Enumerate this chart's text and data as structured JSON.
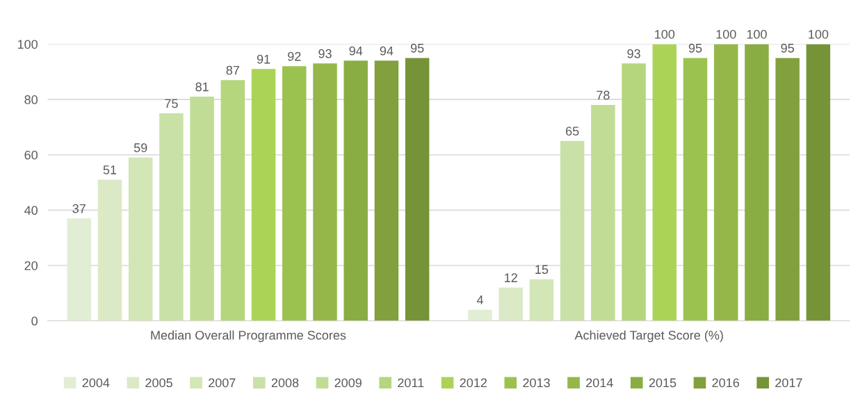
{
  "chart_data": {
    "type": "bar",
    "categories": [
      "Median Overall Programme Scores",
      "Achieved Target Score (%)"
    ],
    "series": [
      {
        "name": "2004",
        "color": "#e2eed4",
        "values": [
          37,
          4
        ]
      },
      {
        "name": "2005",
        "color": "#dbe9c6",
        "values": [
          51,
          12
        ]
      },
      {
        "name": "2007",
        "color": "#d3e6b6",
        "values": [
          59,
          15
        ]
      },
      {
        "name": "2008",
        "color": "#c9e1a6",
        "values": [
          75,
          65
        ]
      },
      {
        "name": "2009",
        "color": "#c1dd95",
        "values": [
          81,
          78
        ]
      },
      {
        "name": "2011",
        "color": "#b5d67c",
        "values": [
          87,
          93
        ]
      },
      {
        "name": "2012",
        "color": "#abd457",
        "values": [
          91,
          100
        ]
      },
      {
        "name": "2013",
        "color": "#9bc24f",
        "values": [
          92,
          95
        ]
      },
      {
        "name": "2014",
        "color": "#95b74a",
        "values": [
          93,
          100
        ]
      },
      {
        "name": "2015",
        "color": "#89ad43",
        "values": [
          94,
          100
        ]
      },
      {
        "name": "2016",
        "color": "#82a03d",
        "values": [
          94,
          95
        ]
      },
      {
        "name": "2017",
        "color": "#769437",
        "values": [
          95,
          100
        ]
      }
    ],
    "ylim": [
      0,
      100
    ],
    "yticks": [
      0,
      20,
      40,
      60,
      80,
      100
    ],
    "grid": "y",
    "legend": "bottom",
    "data_labels": true
  }
}
